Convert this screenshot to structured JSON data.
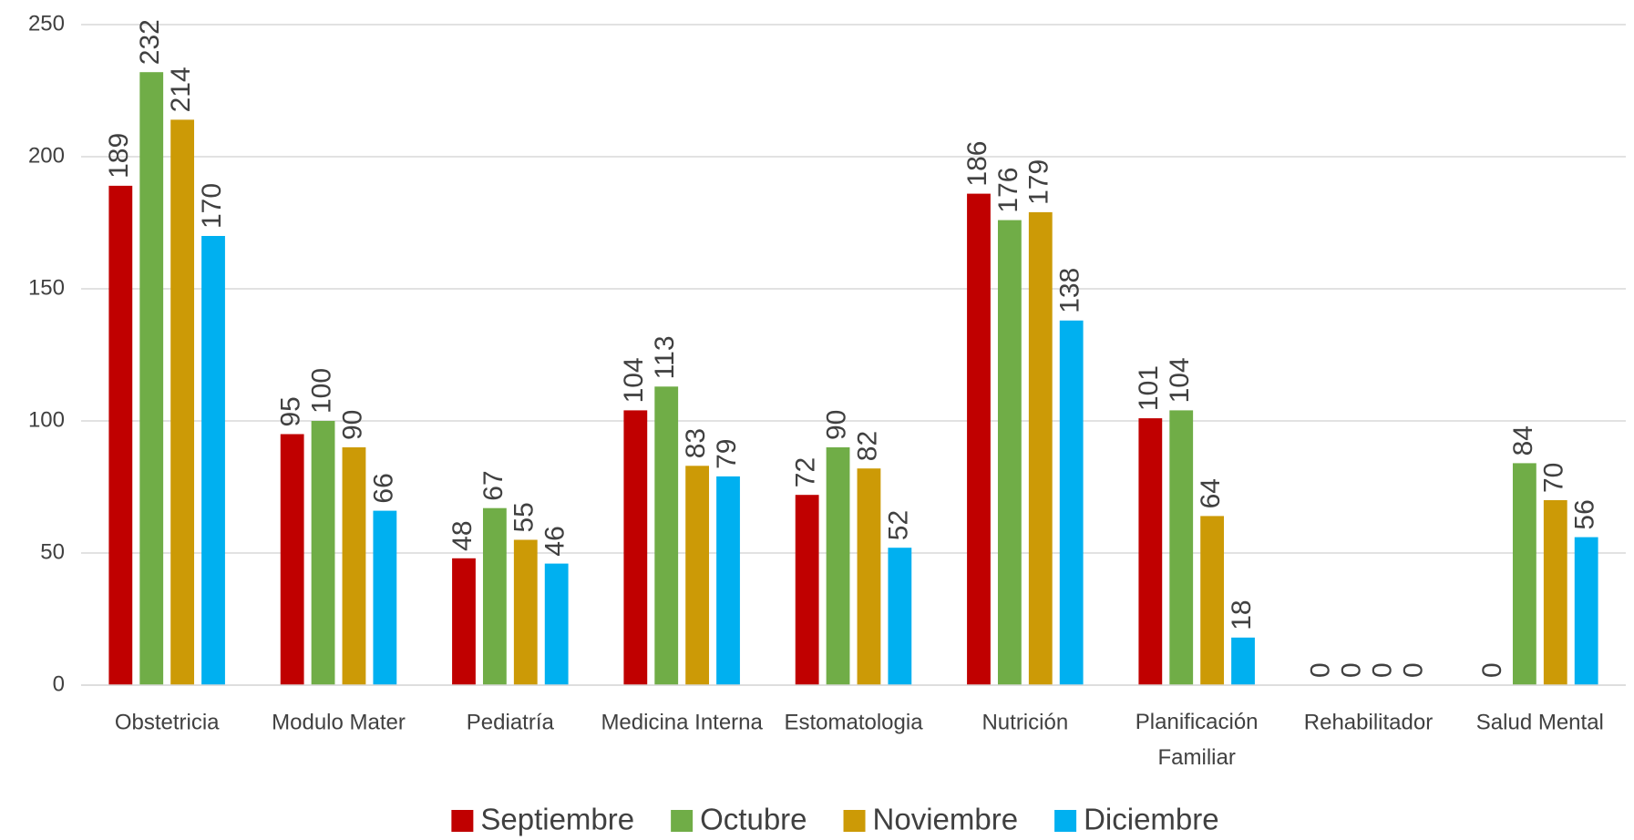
{
  "chart_data": {
    "type": "bar",
    "categories": [
      "Obstetricia",
      "Modulo Mater",
      "Pediatría",
      "Medicina Interna",
      "Estomatologia",
      "Nutrición",
      "Planificación Familiar",
      "Rehabilitador",
      "Salud Mental"
    ],
    "series": [
      {
        "name": "Septiembre",
        "color": "#c00000",
        "values": [
          189,
          95,
          48,
          104,
          72,
          186,
          101,
          0,
          0
        ]
      },
      {
        "name": "Octubre",
        "color": "#70ad47",
        "values": [
          232,
          100,
          67,
          113,
          90,
          176,
          104,
          0,
          84
        ]
      },
      {
        "name": "Noviembre",
        "color": "#cc9a06",
        "values": [
          214,
          90,
          55,
          83,
          82,
          179,
          64,
          0,
          70
        ]
      },
      {
        "name": "Diciembre",
        "color": "#00b0f0",
        "values": [
          170,
          66,
          46,
          79,
          52,
          138,
          18,
          0,
          56
        ]
      }
    ],
    "ylim": [
      0,
      250
    ],
    "yticks": [
      0,
      50,
      100,
      150,
      200,
      250
    ],
    "grid": true,
    "legend": "bottom"
  }
}
